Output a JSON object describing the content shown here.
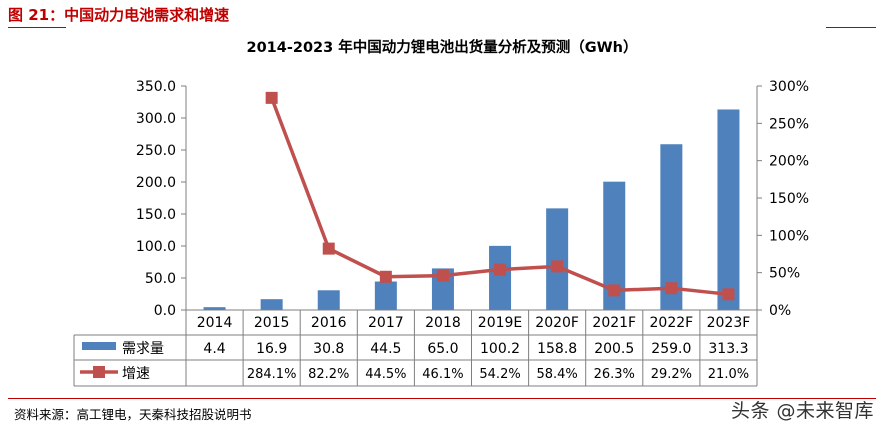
{
  "figure": {
    "number": "图 21：",
    "caption": "中国动力电池需求和增速"
  },
  "source_note": "资料来源：高工锂电，天秦科技招股说明书",
  "watermark": "头条 @未来智库",
  "chart_data": {
    "type": "bar",
    "title": "2014-2023 年中国动力锂电池出货量分析及预测（GWh）",
    "categories": [
      "2014",
      "2015",
      "2016",
      "2017",
      "2018",
      "2019E",
      "2020F",
      "2021F",
      "2022F",
      "2023F"
    ],
    "series": [
      {
        "name": "需求量",
        "type": "bar",
        "axis": "left",
        "color": "#4f81bd",
        "values": [
          4.4,
          16.9,
          30.8,
          44.5,
          65.0,
          100.2,
          158.8,
          200.5,
          259.0,
          313.3
        ],
        "labels": [
          "4.4",
          "16.9",
          "30.8",
          "44.5",
          "65.0",
          "100.2",
          "158.8",
          "200.5",
          "259.0",
          "313.3"
        ]
      },
      {
        "name": "增速",
        "type": "line",
        "axis": "right",
        "color": "#c0504d",
        "values": [
          null,
          284.1,
          82.2,
          44.5,
          46.1,
          54.2,
          58.4,
          26.3,
          29.2,
          21.0
        ],
        "labels": [
          "",
          "284.1%",
          "82.2%",
          "44.5%",
          "46.1%",
          "54.2%",
          "58.4%",
          "26.3%",
          "29.2%",
          "21.0%"
        ]
      }
    ],
    "y_left": {
      "min": 0,
      "max": 350,
      "ticks": [
        "0.0",
        "50.0",
        "100.0",
        "150.0",
        "200.0",
        "250.0",
        "300.0",
        "350.0"
      ]
    },
    "y_right": {
      "min": 0,
      "max": 300,
      "ticks": [
        "0%",
        "50%",
        "100%",
        "150%",
        "200%",
        "250%",
        "300%"
      ]
    },
    "legend": "data-table"
  }
}
